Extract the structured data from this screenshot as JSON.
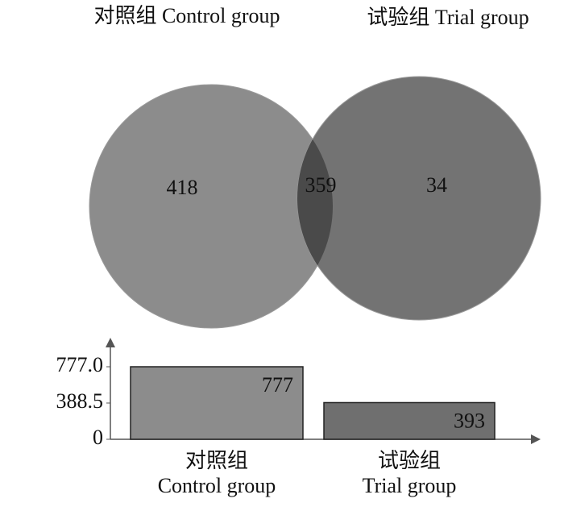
{
  "chart_data": [
    {
      "type": "venn",
      "sets": [
        {
          "name": "对照组 Control group",
          "color": "#8c8c8c"
        },
        {
          "name": "试验组 Trial group",
          "color": "#737373"
        }
      ],
      "overlap_color": "#4a4a4a",
      "values": [
        418,
        359,
        34
      ]
    },
    {
      "type": "bar",
      "categories": [
        [
          "对照组",
          "Control group"
        ],
        [
          "试验组",
          "Trial group"
        ]
      ],
      "values": [
        777,
        393
      ],
      "colors": [
        "#8c8c8c",
        "#6f6f6f"
      ],
      "ylim": [
        0,
        1036
      ],
      "yticks": [
        0,
        388.5,
        {
          "value": 777,
          "label": "777.0"
        }
      ]
    }
  ]
}
